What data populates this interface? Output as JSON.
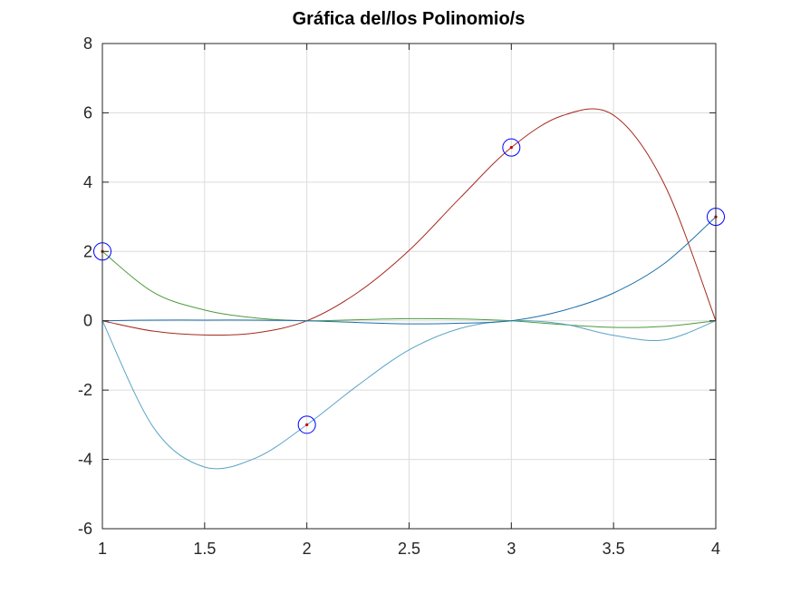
{
  "chart_data": {
    "type": "line",
    "title": "Gráfica del/los Polinomio/s",
    "xlabel": "",
    "ylabel": "",
    "xlim": [
      1,
      4
    ],
    "ylim": [
      -6,
      8
    ],
    "xticks": [
      1,
      1.5,
      2,
      2.5,
      3,
      3.5,
      4
    ],
    "xtick_labels": [
      "1",
      "1.5",
      "2",
      "2.5",
      "3",
      "3.5",
      "4"
    ],
    "yticks": [
      -6,
      -4,
      -2,
      0,
      2,
      4,
      6,
      8
    ],
    "ytick_labels": [
      "-6",
      "-4",
      "-2",
      "0",
      "2",
      "4",
      "6",
      "8"
    ],
    "grid": true,
    "interpolation_points": [
      {
        "x": 1,
        "y": 2
      },
      {
        "x": 2,
        "y": -3
      },
      {
        "x": 3,
        "y": 5
      },
      {
        "x": 4,
        "y": 3
      }
    ],
    "series": [
      {
        "color": "#4d9a3c",
        "x": [
          1,
          1.25,
          1.5,
          1.75,
          2,
          2.25,
          2.5,
          2.75,
          3,
          3.25,
          3.5,
          3.75,
          4
        ],
        "y": [
          2,
          0.82,
          0.31,
          0.08,
          0,
          0.03,
          0.06,
          0.05,
          0,
          -0.11,
          -0.19,
          -0.16,
          0
        ]
      },
      {
        "color": "#5aa3c8",
        "x": [
          1,
          1.25,
          1.5,
          1.75,
          2,
          2.25,
          2.5,
          2.75,
          3,
          3.25,
          3.5,
          3.75,
          4
        ],
        "y": [
          0,
          -3.08,
          -4.22,
          -3.96,
          -3,
          -1.86,
          -0.84,
          -0.22,
          0,
          -0.09,
          -0.42,
          -0.55,
          0
        ]
      },
      {
        "color": "#a52a1e",
        "x": [
          1,
          1.25,
          1.5,
          1.75,
          2,
          2.25,
          2.5,
          2.75,
          3,
          3.25,
          3.5,
          3.75,
          4
        ],
        "y": [
          0,
          -0.3,
          -0.41,
          -0.35,
          0,
          0.82,
          2.03,
          3.55,
          5,
          5.92,
          5.93,
          3.92,
          0
        ]
      },
      {
        "color": "#1f6fa8",
        "x": [
          1,
          1.25,
          1.5,
          1.75,
          2,
          2.25,
          2.5,
          2.75,
          3,
          3.25,
          3.5,
          3.75,
          4
        ],
        "y": [
          0,
          0.02,
          0.02,
          0.02,
          0,
          -0.05,
          -0.09,
          -0.07,
          0,
          0.29,
          0.8,
          1.66,
          3
        ]
      }
    ],
    "marker_color": "#0000ff",
    "point_color": "#cc0000"
  }
}
